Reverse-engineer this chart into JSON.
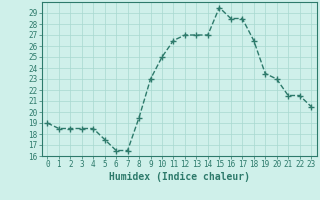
{
  "title": "",
  "xlabel": "Humidex (Indice chaleur)",
  "ylabel": "",
  "x": [
    0,
    1,
    2,
    3,
    4,
    5,
    6,
    7,
    8,
    9,
    10,
    11,
    12,
    13,
    14,
    15,
    16,
    17,
    18,
    19,
    20,
    21,
    22,
    23
  ],
  "y": [
    19,
    18.5,
    18.5,
    18.5,
    18.5,
    17.5,
    16.5,
    16.5,
    19.5,
    23,
    25,
    26.5,
    27,
    27,
    27,
    29.5,
    28.5,
    28.5,
    26.5,
    23.5,
    23,
    21.5,
    21.5,
    20.5
  ],
  "line_color": "#2d7a6b",
  "marker": "+",
  "markersize": 4,
  "markeredgewidth": 1.0,
  "linewidth": 1.0,
  "linestyle": "--",
  "bg_color": "#cff0ea",
  "grid_color": "#a8d8d0",
  "ylim": [
    16,
    30
  ],
  "xlim": [
    -0.5,
    23.5
  ],
  "yticks": [
    16,
    17,
    18,
    19,
    20,
    21,
    22,
    23,
    24,
    25,
    26,
    27,
    28,
    29
  ],
  "xticks": [
    0,
    1,
    2,
    3,
    4,
    5,
    6,
    7,
    8,
    9,
    10,
    11,
    12,
    13,
    14,
    15,
    16,
    17,
    18,
    19,
    20,
    21,
    22,
    23
  ],
  "tick_fontsize": 5.5,
  "xlabel_fontsize": 7,
  "axis_color": "#2d7a6b",
  "spine_color": "#2d7a6b"
}
